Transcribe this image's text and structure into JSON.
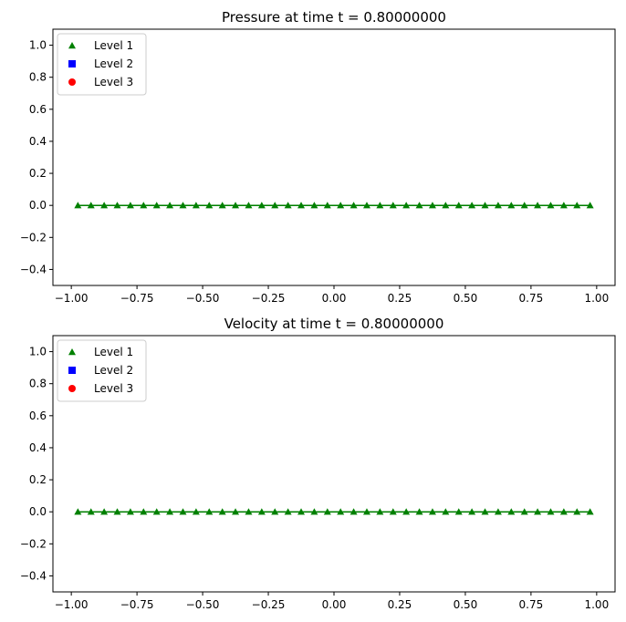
{
  "chart_data": [
    {
      "type": "line",
      "title": "Pressure at time t =     0.80000000",
      "xlabel": "",
      "ylabel": "",
      "xlim": [
        -1.07,
        1.07
      ],
      "ylim": [
        -0.5,
        1.1
      ],
      "xticks": [
        -1.0,
        -0.75,
        -0.5,
        -0.25,
        0.0,
        0.25,
        0.5,
        0.75,
        1.0
      ],
      "xtick_labels": [
        "−1.00",
        "−0.75",
        "−0.50",
        "−0.25",
        "0.00",
        "0.25",
        "0.50",
        "0.75",
        "1.00"
      ],
      "yticks": [
        -0.4,
        -0.2,
        0.0,
        0.2,
        0.4,
        0.6,
        0.8,
        1.0
      ],
      "ytick_labels": [
        "−0.4",
        "−0.2",
        "0.0",
        "0.2",
        "0.4",
        "0.6",
        "0.8",
        "1.0"
      ],
      "grid": false,
      "legend": "upper-left",
      "series": [
        {
          "name": "Level 1",
          "marker": "triangle",
          "color": "#008000",
          "x": [
            -0.975,
            -0.925,
            -0.875,
            -0.825,
            -0.775,
            -0.725,
            -0.675,
            -0.625,
            -0.575,
            -0.525,
            -0.475,
            -0.425,
            -0.375,
            -0.325,
            -0.275,
            -0.225,
            -0.175,
            -0.125,
            -0.075,
            -0.025,
            0.025,
            0.075,
            0.125,
            0.175,
            0.225,
            0.275,
            0.325,
            0.375,
            0.425,
            0.475,
            0.525,
            0.575,
            0.625,
            0.675,
            0.725,
            0.775,
            0.825,
            0.875,
            0.925,
            0.975
          ],
          "y": [
            0.0,
            0.0,
            0.0,
            0.0,
            0.0,
            0.0,
            0.0,
            0.0,
            0.0,
            0.0,
            0.0,
            0.0,
            0.0,
            0.0,
            0.0,
            0.0,
            0.0,
            0.0,
            0.0,
            0.0,
            0.0,
            0.0,
            0.0,
            0.0,
            0.0,
            0.0,
            0.0,
            0.0,
            0.0,
            0.0,
            0.0,
            0.0,
            0.0,
            0.0,
            0.0,
            0.0,
            0.0,
            0.0,
            0.0,
            0.0
          ]
        },
        {
          "name": "Level 2",
          "marker": "square",
          "color": "#0000ff",
          "x": [],
          "y": []
        },
        {
          "name": "Level 3",
          "marker": "circle",
          "color": "#ff0000",
          "x": [],
          "y": []
        }
      ]
    },
    {
      "type": "line",
      "title": "Velocity at time t =     0.80000000",
      "xlabel": "",
      "ylabel": "",
      "xlim": [
        -1.07,
        1.07
      ],
      "ylim": [
        -0.5,
        1.1
      ],
      "xticks": [
        -1.0,
        -0.75,
        -0.5,
        -0.25,
        0.0,
        0.25,
        0.5,
        0.75,
        1.0
      ],
      "xtick_labels": [
        "−1.00",
        "−0.75",
        "−0.50",
        "−0.25",
        "0.00",
        "0.25",
        "0.50",
        "0.75",
        "1.00"
      ],
      "yticks": [
        -0.4,
        -0.2,
        0.0,
        0.2,
        0.4,
        0.6,
        0.8,
        1.0
      ],
      "ytick_labels": [
        "−0.4",
        "−0.2",
        "0.0",
        "0.2",
        "0.4",
        "0.6",
        "0.8",
        "1.0"
      ],
      "grid": false,
      "legend": "upper-left",
      "series": [
        {
          "name": "Level 1",
          "marker": "triangle",
          "color": "#008000",
          "x": [
            -0.975,
            -0.925,
            -0.875,
            -0.825,
            -0.775,
            -0.725,
            -0.675,
            -0.625,
            -0.575,
            -0.525,
            -0.475,
            -0.425,
            -0.375,
            -0.325,
            -0.275,
            -0.225,
            -0.175,
            -0.125,
            -0.075,
            -0.025,
            0.025,
            0.075,
            0.125,
            0.175,
            0.225,
            0.275,
            0.325,
            0.375,
            0.425,
            0.475,
            0.525,
            0.575,
            0.625,
            0.675,
            0.725,
            0.775,
            0.825,
            0.875,
            0.925,
            0.975
          ],
          "y": [
            0.0,
            0.0,
            0.0,
            0.0,
            0.0,
            0.0,
            0.0,
            0.0,
            0.0,
            0.0,
            0.0,
            0.0,
            0.0,
            0.0,
            0.0,
            0.0,
            0.0,
            0.0,
            0.0,
            0.0,
            0.0,
            0.0,
            0.0,
            0.0,
            0.0,
            0.0,
            0.0,
            0.0,
            0.0,
            0.0,
            0.0,
            0.0,
            0.0,
            0.0,
            0.0,
            0.0,
            0.0,
            0.0,
            0.0,
            0.0
          ]
        },
        {
          "name": "Level 2",
          "marker": "square",
          "color": "#0000ff",
          "x": [],
          "y": []
        },
        {
          "name": "Level 3",
          "marker": "circle",
          "color": "#ff0000",
          "x": [],
          "y": []
        }
      ]
    }
  ]
}
